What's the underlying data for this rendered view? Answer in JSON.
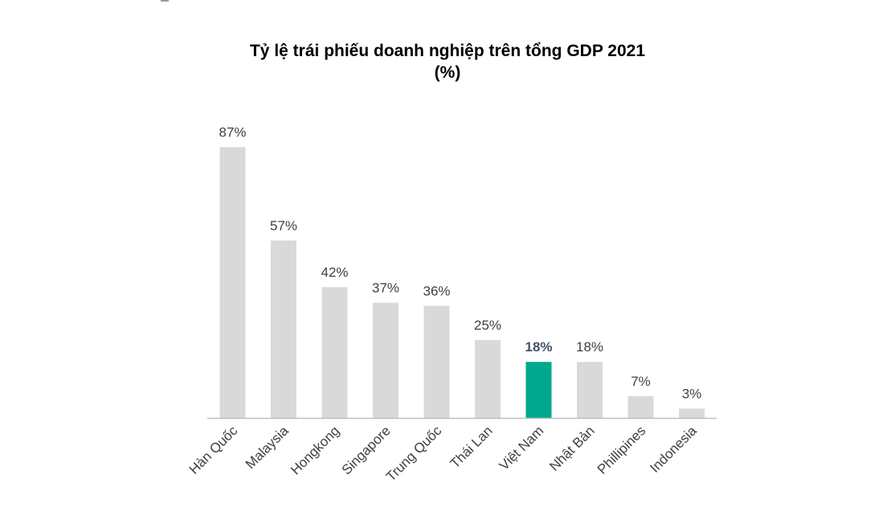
{
  "chart_data": {
    "type": "bar",
    "title": "Tỷ lệ trái phiếu doanh nghiệp trên tổng GDP 2021",
    "subtitle": "(%)",
    "categories": [
      "Hàn Quốc",
      "Malaysia",
      "Hongkong",
      "Singapore",
      "Trung Quốc",
      "Thái Lan",
      "Việt Nam",
      "Nhật Bản",
      "Phillipines",
      "Indonesia"
    ],
    "values": [
      87,
      57,
      42,
      37,
      36,
      25,
      18,
      18,
      7,
      3
    ],
    "value_labels": [
      "87%",
      "57%",
      "42%",
      "37%",
      "36%",
      "25%",
      "18%",
      "18%",
      "7%",
      "3%"
    ],
    "highlight_index": 6,
    "ylim": [
      0,
      90
    ],
    "grid": false,
    "legend": "none",
    "colors": {
      "bar": "#d9d9d9",
      "highlight": "#00a88f",
      "label": "#404040",
      "highlight_label": "#44546a",
      "axis": "#bfbfbf"
    }
  }
}
